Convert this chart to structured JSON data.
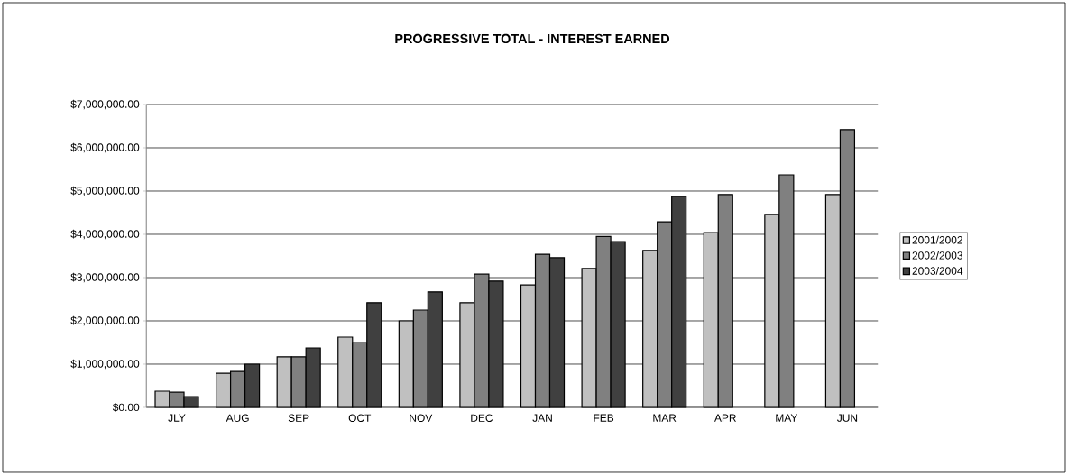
{
  "chart_data": {
    "type": "bar",
    "title": "PROGRESSIVE TOTAL - INTEREST EARNED",
    "categories": [
      "JLY",
      "AUG",
      "SEP",
      "OCT",
      "NOV",
      "DEC",
      "JAN",
      "FEB",
      "MAR",
      "APR",
      "MAY",
      "JUN"
    ],
    "series": [
      {
        "name": "2001/2002",
        "color": "#c0c0c0",
        "values": [
          375000,
          790000,
          1170000,
          1625000,
          2000000,
          2420000,
          2830000,
          3210000,
          3630000,
          4040000,
          4460000,
          4920000
        ]
      },
      {
        "name": "2002/2003",
        "color": "#808080",
        "values": [
          350000,
          830000,
          1170000,
          1500000,
          2250000,
          3080000,
          3540000,
          3950000,
          4290000,
          4920000,
          5375000,
          6420000
        ]
      },
      {
        "name": "2003/2004",
        "color": "#404040",
        "values": [
          250000,
          1000000,
          1375000,
          2420000,
          2670000,
          2920000,
          3460000,
          3830000,
          4875000,
          null,
          null,
          null
        ]
      }
    ],
    "ylim": [
      0,
      7000000
    ],
    "yticks": [
      {
        "value": 0,
        "label": "$0.00"
      },
      {
        "value": 1000000,
        "label": "$1,000,000.00"
      },
      {
        "value": 2000000,
        "label": "$2,000,000.00"
      },
      {
        "value": 3000000,
        "label": "$3,000,000.00"
      },
      {
        "value": 4000000,
        "label": "$4,000,000.00"
      },
      {
        "value": 5000000,
        "label": "$5,000,000.00"
      },
      {
        "value": 6000000,
        "label": "$6,000,000.00"
      },
      {
        "value": 7000000,
        "label": "$7,000,000.00"
      }
    ],
    "grid": "y",
    "legend": "right"
  }
}
